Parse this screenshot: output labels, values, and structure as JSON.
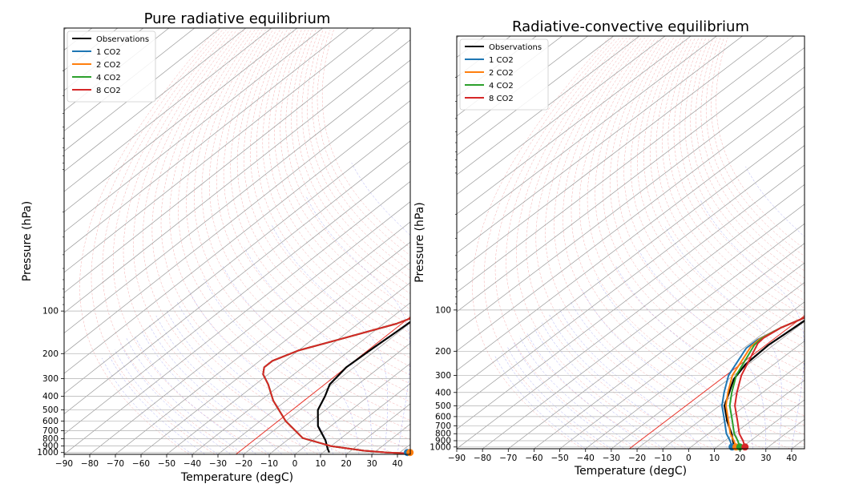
{
  "chart_data": [
    {
      "type": "line",
      "title": "Pure radiative equilibrium",
      "xlabel": "Temperature (degC)",
      "ylabel": "Pressure (hPa)",
      "xlim": [
        -90,
        45
      ],
      "ylim_hpa": [
        1030,
        1
      ],
      "y_scale": "log",
      "x_ticks": [
        -90,
        -80,
        -70,
        -60,
        -50,
        -40,
        -30,
        -20,
        -10,
        0,
        10,
        20,
        30,
        40
      ],
      "y_ticks": [
        100,
        200,
        300,
        400,
        500,
        600,
        700,
        800,
        900,
        1000
      ],
      "grid": true,
      "legend_loc": "top-left",
      "dry_adiabats": true,
      "moist_adiabats": true,
      "mixing_ratio_lines": true,
      "reference_isotherm_degC": -23,
      "series": [
        {
          "name": "Observations",
          "color": "#000000",
          "points": [
            [
              12.5,
              1000
            ],
            [
              10,
              940
            ],
            [
              5,
              820
            ],
            [
              -5,
              650
            ],
            [
              -13,
              500
            ],
            [
              -17,
              400
            ],
            [
              -21,
              330
            ],
            [
              -23,
              250
            ],
            [
              -22,
              180
            ],
            [
              -21,
              140
            ],
            [
              -20,
              103
            ],
            [
              -17,
              90
            ],
            [
              -12,
              70
            ],
            [
              -4,
              50
            ],
            [
              14,
              15
            ],
            [
              46,
              3
            ]
          ]
        },
        {
          "name": "1 CO2",
          "color": "#1f77b4",
          "points": [
            [
              45,
              1015
            ],
            [
              35,
              1000
            ],
            [
              25,
              970
            ],
            [
              10,
              900
            ],
            [
              -5,
              790
            ],
            [
              -20,
              600
            ],
            [
              -35,
              430
            ],
            [
              -45,
              330
            ],
            [
              -52,
              280
            ],
            [
              -55,
              250
            ],
            [
              -55,
              225
            ],
            [
              -50,
              190
            ],
            [
              -40,
              160
            ],
            [
              -25,
              123
            ],
            [
              -19,
              102
            ],
            [
              -12,
              85
            ],
            [
              -2,
              60
            ],
            [
              17,
              22
            ],
            [
              45,
              5.5
            ]
          ]
        },
        {
          "name": "2 CO2",
          "color": "#ff7f0e",
          "points": [
            [
              45,
              1015
            ],
            [
              35,
              1000
            ],
            [
              25,
              970
            ],
            [
              10,
              900
            ],
            [
              -5,
              790
            ],
            [
              -20,
              600
            ],
            [
              -35,
              430
            ],
            [
              -45,
              330
            ],
            [
              -52,
              280
            ],
            [
              -55,
              250
            ],
            [
              -55,
              225
            ],
            [
              -50,
              190
            ],
            [
              -40,
              160
            ],
            [
              -25,
              123
            ],
            [
              -19,
              102
            ],
            [
              -12,
              85
            ],
            [
              -2,
              60
            ],
            [
              19,
              17
            ],
            [
              45,
              4.5
            ]
          ]
        },
        {
          "name": "4 CO2",
          "color": "#2ca02c",
          "points": [
            [
              45,
              1015
            ],
            [
              35,
              1000
            ],
            [
              25,
              970
            ],
            [
              10,
              900
            ],
            [
              -5,
              790
            ],
            [
              -20,
              600
            ],
            [
              -35,
              430
            ],
            [
              -45,
              330
            ],
            [
              -52,
              280
            ],
            [
              -55,
              250
            ],
            [
              -55,
              225
            ],
            [
              -50,
              190
            ],
            [
              -40,
              160
            ],
            [
              -25,
              123
            ],
            [
              -19,
              102
            ],
            [
              -12,
              85
            ],
            [
              -2,
              60
            ],
            [
              20,
              15
            ],
            [
              45,
              3.3
            ]
          ]
        },
        {
          "name": "8 CO2",
          "color": "#d62728",
          "points": [
            [
              45,
              1015
            ],
            [
              35,
              1000
            ],
            [
              25,
              970
            ],
            [
              10,
              900
            ],
            [
              -5,
              790
            ],
            [
              -20,
              600
            ],
            [
              -35,
              430
            ],
            [
              -45,
              330
            ],
            [
              -52,
              280
            ],
            [
              -55,
              250
            ],
            [
              -55,
              225
            ],
            [
              -50,
              190
            ],
            [
              -40,
              160
            ],
            [
              -25,
              123
            ],
            [
              -19,
              102
            ],
            [
              -12,
              85
            ],
            [
              -2,
              60
            ],
            [
              21,
              13
            ],
            [
              45,
              2.6
            ]
          ]
        }
      ],
      "surface_markers": [
        {
          "series": "1 CO2",
          "temperature": 43,
          "pressure": 1000
        },
        {
          "series": "2 CO2",
          "temperature": 44,
          "pressure": 1000
        }
      ]
    },
    {
      "type": "line",
      "title": "Radiative-convective equilibrium",
      "xlabel": "Temperature (degC)",
      "ylabel": "Pressure (hPa)",
      "xlim": [
        -90,
        45
      ],
      "ylim_hpa": [
        1030,
        1
      ],
      "y_scale": "log",
      "x_ticks": [
        -90,
        -80,
        -70,
        -60,
        -50,
        -40,
        -30,
        -20,
        -10,
        0,
        10,
        20,
        30,
        40
      ],
      "y_ticks": [
        100,
        200,
        300,
        400,
        500,
        600,
        700,
        800,
        900,
        1000
      ],
      "grid": true,
      "legend_loc": "top-left",
      "dry_adiabats": true,
      "moist_adiabats": true,
      "mixing_ratio_lines": true,
      "reference_isotherm_degC": -23,
      "series": [
        {
          "name": "Observations",
          "color": "#000000",
          "points": [
            [
              17,
              1000
            ],
            [
              15,
              950
            ],
            [
              9,
              800
            ],
            [
              1,
              650
            ],
            [
              -8,
              500
            ],
            [
              -13,
              400
            ],
            [
              -18,
              320
            ],
            [
              -21,
              250
            ],
            [
              -22,
              180
            ],
            [
              -21,
              140
            ],
            [
              -20,
              103
            ],
            [
              -17,
              90
            ],
            [
              -11,
              65
            ],
            [
              -3,
              48
            ],
            [
              16,
              15
            ],
            [
              46,
              3
            ]
          ]
        },
        {
          "name": "1 CO2",
          "color": "#1f77b4",
          "points": [
            [
              16,
              1000
            ],
            [
              12,
              900
            ],
            [
              7,
              800
            ],
            [
              0,
              650
            ],
            [
              -9,
              500
            ],
            [
              -15,
              400
            ],
            [
              -22,
              300
            ],
            [
              -29,
              190
            ],
            [
              -29,
              165
            ],
            [
              -26,
              135
            ],
            [
              -20,
              105
            ],
            [
              -14,
              85
            ],
            [
              -4,
              60
            ],
            [
              17,
              22
            ],
            [
              45,
              5.5
            ]
          ]
        },
        {
          "name": "2 CO2",
          "color": "#ff7f0e",
          "points": [
            [
              17.5,
              1000
            ],
            [
              13.5,
              900
            ],
            [
              8.5,
              800
            ],
            [
              1.5,
              650
            ],
            [
              -7.5,
              500
            ],
            [
              -13.5,
              400
            ],
            [
              -20.5,
              300
            ],
            [
              -28,
              185
            ],
            [
              -28.5,
              163
            ],
            [
              -26,
              135
            ],
            [
              -20,
              105
            ],
            [
              -14,
              85
            ],
            [
              -4,
              60
            ],
            [
              19,
              17
            ],
            [
              45,
              4.5
            ]
          ]
        },
        {
          "name": "4 CO2",
          "color": "#2ca02c",
          "points": [
            [
              19,
              1000
            ],
            [
              15,
              900
            ],
            [
              10,
              800
            ],
            [
              3,
              650
            ],
            [
              -6,
              500
            ],
            [
              -12,
              400
            ],
            [
              -19,
              300
            ],
            [
              -27.5,
              180
            ],
            [
              -28,
              162
            ],
            [
              -26,
              135
            ],
            [
              -20,
              105
            ],
            [
              -14,
              85
            ],
            [
              -4,
              60
            ],
            [
              20,
              15
            ],
            [
              45,
              3.3
            ]
          ]
        },
        {
          "name": "8 CO2",
          "color": "#d62728",
          "points": [
            [
              21,
              1000
            ],
            [
              17,
              900
            ],
            [
              12,
              800
            ],
            [
              5,
              650
            ],
            [
              -4,
              500
            ],
            [
              -10,
              400
            ],
            [
              -17,
              300
            ],
            [
              -27,
              175
            ],
            [
              -27.5,
              160
            ],
            [
              -26,
              135
            ],
            [
              -20,
              105
            ],
            [
              -14,
              85
            ],
            [
              -4,
              60
            ],
            [
              21,
              13
            ],
            [
              45,
              2.6
            ]
          ]
        }
      ],
      "surface_markers": [
        {
          "series": "1 CO2",
          "temperature": 16,
          "pressure": 1000
        },
        {
          "series": "2 CO2",
          "temperature": 17.5,
          "pressure": 1000
        },
        {
          "series": "4 CO2",
          "temperature": 19,
          "pressure": 1000
        },
        {
          "series": "8 CO2",
          "temperature": 21,
          "pressure": 1000
        }
      ]
    }
  ]
}
